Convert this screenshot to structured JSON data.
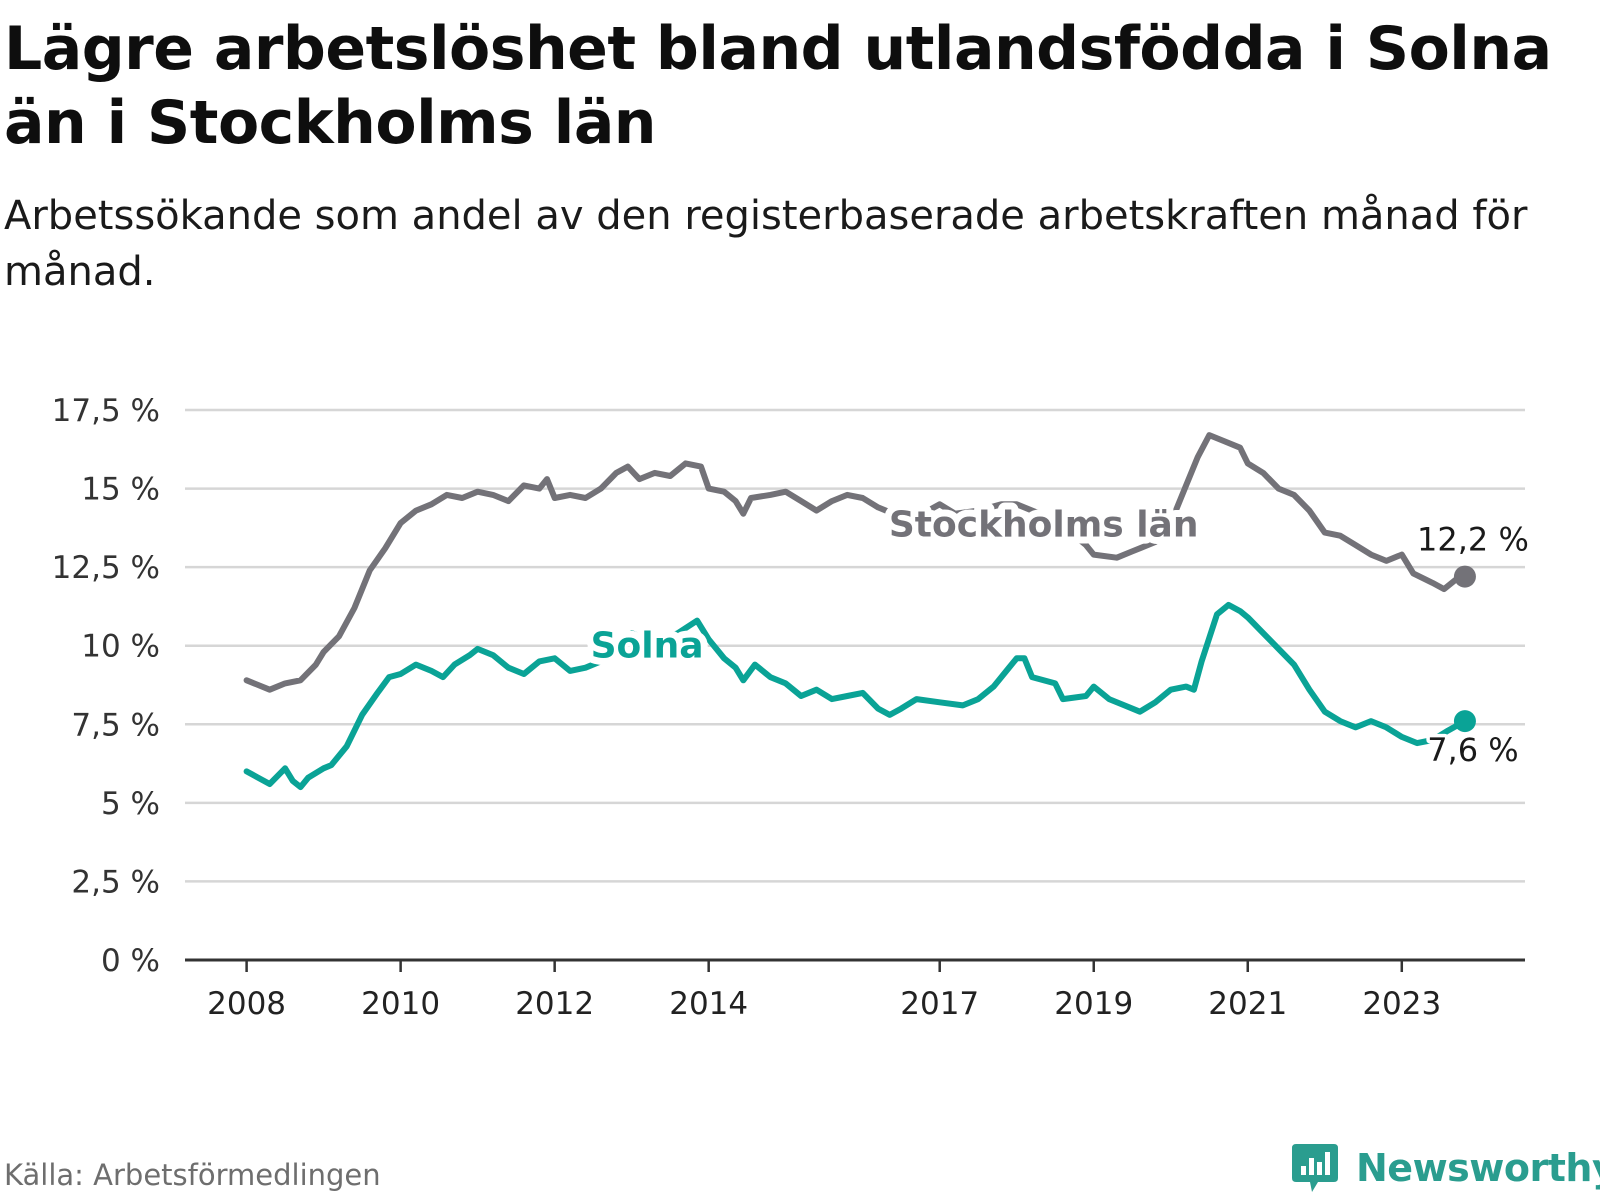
{
  "title": "Lägre arbetslöshet bland utlandsfödda i Solna än i Stockholms län",
  "subtitle": "Arbetssökande som andel av den registerbaserade arbetskraften månad för månad.",
  "source": "Källa: Arbetsförmedlingen",
  "brand": "Newsworthy",
  "colors": {
    "stockholm": "#737278",
    "solna": "#0aa396",
    "grid": "#d6d6d6",
    "axis": "#333333",
    "brand": "#2a9d8f"
  },
  "chart_data": {
    "type": "line",
    "title": "Lägre arbetslöshet bland utlandsfödda i Solna än i Stockholms län",
    "xlabel": "",
    "ylabel": "",
    "ylim": [
      0,
      17.5
    ],
    "xlim": [
      2007.2,
      2024.6
    ],
    "yticks": [
      {
        "value": 0,
        "label": "0 %"
      },
      {
        "value": 2.5,
        "label": "2,5 %"
      },
      {
        "value": 5,
        "label": "5 %"
      },
      {
        "value": 7.5,
        "label": "7,5 %"
      },
      {
        "value": 10,
        "label": "10 %"
      },
      {
        "value": 12.5,
        "label": "12,5 %"
      },
      {
        "value": 15,
        "label": "15 %"
      },
      {
        "value": 17.5,
        "label": "17,5 %"
      }
    ],
    "xticks": [
      {
        "value": 2008,
        "label": "2008"
      },
      {
        "value": 2010,
        "label": "2010"
      },
      {
        "value": 2012,
        "label": "2012"
      },
      {
        "value": 2014,
        "label": "2014"
      },
      {
        "value": 2017,
        "label": "2017"
      },
      {
        "value": 2019,
        "label": "2019"
      },
      {
        "value": 2021,
        "label": "2021"
      },
      {
        "value": 2023,
        "label": "2023"
      }
    ],
    "series": [
      {
        "name": "Stockholms län",
        "color": "#737278",
        "end_label": "12,2 %",
        "points": [
          [
            2008.0,
            8.9
          ],
          [
            2008.3,
            8.6
          ],
          [
            2008.5,
            8.8
          ],
          [
            2008.7,
            8.9
          ],
          [
            2008.9,
            9.4
          ],
          [
            2009.0,
            9.8
          ],
          [
            2009.2,
            10.3
          ],
          [
            2009.4,
            11.2
          ],
          [
            2009.6,
            12.4
          ],
          [
            2009.8,
            13.1
          ],
          [
            2010.0,
            13.9
          ],
          [
            2010.2,
            14.3
          ],
          [
            2010.4,
            14.5
          ],
          [
            2010.6,
            14.8
          ],
          [
            2010.8,
            14.7
          ],
          [
            2011.0,
            14.9
          ],
          [
            2011.2,
            14.8
          ],
          [
            2011.4,
            14.6
          ],
          [
            2011.6,
            15.1
          ],
          [
            2011.8,
            15.0
          ],
          [
            2011.9,
            15.3
          ],
          [
            2012.0,
            14.7
          ],
          [
            2012.2,
            14.8
          ],
          [
            2012.4,
            14.7
          ],
          [
            2012.6,
            15.0
          ],
          [
            2012.8,
            15.5
          ],
          [
            2012.95,
            15.7
          ],
          [
            2013.1,
            15.3
          ],
          [
            2013.3,
            15.5
          ],
          [
            2013.5,
            15.4
          ],
          [
            2013.7,
            15.8
          ],
          [
            2013.9,
            15.7
          ],
          [
            2014.0,
            15.0
          ],
          [
            2014.2,
            14.9
          ],
          [
            2014.35,
            14.6
          ],
          [
            2014.45,
            14.2
          ],
          [
            2014.55,
            14.7
          ],
          [
            2014.8,
            14.8
          ],
          [
            2015.0,
            14.9
          ],
          [
            2015.2,
            14.6
          ],
          [
            2015.4,
            14.3
          ],
          [
            2015.6,
            14.6
          ],
          [
            2015.8,
            14.8
          ],
          [
            2016.0,
            14.7
          ],
          [
            2016.2,
            14.4
          ],
          [
            2016.6,
            14.0
          ],
          [
            2016.85,
            14.3
          ],
          [
            2017.0,
            14.5
          ],
          [
            2017.2,
            14.2
          ],
          [
            2017.5,
            14.3
          ],
          [
            2017.8,
            14.5
          ],
          [
            2018.0,
            14.5
          ],
          [
            2018.3,
            14.2
          ],
          [
            2018.6,
            13.8
          ],
          [
            2018.9,
            13.2
          ],
          [
            2019.0,
            12.9
          ],
          [
            2019.3,
            12.8
          ],
          [
            2019.5,
            13.0
          ],
          [
            2019.8,
            13.3
          ],
          [
            2020.0,
            13.9
          ],
          [
            2020.2,
            15.1
          ],
          [
            2020.35,
            16.0
          ],
          [
            2020.5,
            16.7
          ],
          [
            2020.7,
            16.5
          ],
          [
            2020.9,
            16.3
          ],
          [
            2021.0,
            15.8
          ],
          [
            2021.2,
            15.5
          ],
          [
            2021.4,
            15.0
          ],
          [
            2021.6,
            14.8
          ],
          [
            2021.8,
            14.3
          ],
          [
            2022.0,
            13.6
          ],
          [
            2022.2,
            13.5
          ],
          [
            2022.4,
            13.2
          ],
          [
            2022.6,
            12.9
          ],
          [
            2022.8,
            12.7
          ],
          [
            2023.0,
            12.9
          ],
          [
            2023.15,
            12.3
          ],
          [
            2023.4,
            12.0
          ],
          [
            2023.55,
            11.8
          ],
          [
            2023.7,
            12.1
          ],
          [
            2023.82,
            12.2
          ]
        ]
      },
      {
        "name": "Solna",
        "color": "#0aa396",
        "end_label": "7,6 %",
        "points": [
          [
            2008.0,
            6.0
          ],
          [
            2008.15,
            5.8
          ],
          [
            2008.3,
            5.6
          ],
          [
            2008.5,
            6.1
          ],
          [
            2008.6,
            5.7
          ],
          [
            2008.7,
            5.5
          ],
          [
            2008.8,
            5.8
          ],
          [
            2009.0,
            6.1
          ],
          [
            2009.1,
            6.2
          ],
          [
            2009.3,
            6.8
          ],
          [
            2009.5,
            7.8
          ],
          [
            2009.7,
            8.5
          ],
          [
            2009.85,
            9.0
          ],
          [
            2010.0,
            9.1
          ],
          [
            2010.2,
            9.4
          ],
          [
            2010.4,
            9.2
          ],
          [
            2010.55,
            9.0
          ],
          [
            2010.7,
            9.4
          ],
          [
            2010.9,
            9.7
          ],
          [
            2011.0,
            9.9
          ],
          [
            2011.2,
            9.7
          ],
          [
            2011.4,
            9.3
          ],
          [
            2011.6,
            9.1
          ],
          [
            2011.8,
            9.5
          ],
          [
            2012.0,
            9.6
          ],
          [
            2012.2,
            9.2
          ],
          [
            2012.4,
            9.3
          ],
          [
            2012.6,
            9.5
          ],
          [
            2012.8,
            10.0
          ],
          [
            2013.0,
            10.4
          ],
          [
            2013.3,
            10.1
          ],
          [
            2013.6,
            10.4
          ],
          [
            2013.85,
            10.8
          ],
          [
            2014.0,
            10.2
          ],
          [
            2014.2,
            9.6
          ],
          [
            2014.35,
            9.3
          ],
          [
            2014.45,
            8.9
          ],
          [
            2014.6,
            9.4
          ],
          [
            2014.8,
            9.0
          ],
          [
            2015.0,
            8.8
          ],
          [
            2015.2,
            8.4
          ],
          [
            2015.4,
            8.6
          ],
          [
            2015.6,
            8.3
          ],
          [
            2015.8,
            8.4
          ],
          [
            2016.0,
            8.5
          ],
          [
            2016.2,
            8.0
          ],
          [
            2016.35,
            7.8
          ],
          [
            2016.5,
            8.0
          ],
          [
            2016.7,
            8.3
          ],
          [
            2017.0,
            8.2
          ],
          [
            2017.3,
            8.1
          ],
          [
            2017.5,
            8.3
          ],
          [
            2017.7,
            8.7
          ],
          [
            2017.9,
            9.3
          ],
          [
            2018.0,
            9.6
          ],
          [
            2018.1,
            9.6
          ],
          [
            2018.2,
            9.0
          ],
          [
            2018.5,
            8.8
          ],
          [
            2018.6,
            8.3
          ],
          [
            2018.9,
            8.4
          ],
          [
            2019.0,
            8.7
          ],
          [
            2019.2,
            8.3
          ],
          [
            2019.4,
            8.1
          ],
          [
            2019.6,
            7.9
          ],
          [
            2019.8,
            8.2
          ],
          [
            2020.0,
            8.6
          ],
          [
            2020.2,
            8.7
          ],
          [
            2020.3,
            8.6
          ],
          [
            2020.4,
            9.5
          ],
          [
            2020.6,
            11.0
          ],
          [
            2020.75,
            11.3
          ],
          [
            2020.9,
            11.1
          ],
          [
            2021.0,
            10.9
          ],
          [
            2021.2,
            10.4
          ],
          [
            2021.4,
            9.9
          ],
          [
            2021.6,
            9.4
          ],
          [
            2021.8,
            8.6
          ],
          [
            2022.0,
            7.9
          ],
          [
            2022.2,
            7.6
          ],
          [
            2022.4,
            7.4
          ],
          [
            2022.6,
            7.6
          ],
          [
            2022.8,
            7.4
          ],
          [
            2023.0,
            7.1
          ],
          [
            2023.2,
            6.9
          ],
          [
            2023.4,
            7.0
          ],
          [
            2023.6,
            7.3
          ],
          [
            2023.82,
            7.6
          ]
        ]
      }
    ],
    "annotations": [
      {
        "text": "Stockholms län",
        "series": "Stockholms län",
        "x": 2018.35,
        "y": 13.85
      },
      {
        "text": "Solna",
        "series": "Solna",
        "x": 2013.2,
        "y": 10.0
      }
    ]
  }
}
